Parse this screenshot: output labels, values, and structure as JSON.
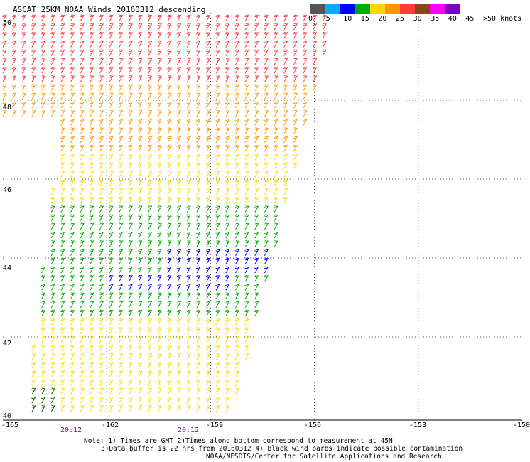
{
  "title": "ASCAT 25KM NOAA Winds 20160312 descending",
  "legend": {
    "colors": [
      "#555555",
      "#00aaff",
      "#0000ff",
      "#00aa00",
      "#ffd800",
      "#ff9900",
      "#ff3b3b",
      "#8b4513",
      "#ff00ff",
      "#8000c0"
    ],
    "labels": [
      "0",
      "5",
      "10",
      "15",
      "20",
      "25",
      "30",
      "35",
      "40",
      "45",
      ">50 knots"
    ]
  },
  "axes": {
    "lon_ticks": [
      "-165",
      "-162",
      "-159",
      "-156",
      "-153",
      "-150"
    ],
    "lat_ticks": [
      "50",
      "48",
      "46",
      "44",
      "42",
      "40"
    ]
  },
  "time_labels": [
    "20:12",
    "20:12"
  ],
  "notes": {
    "line1": "Note: 1) Times are GMT 2)Times along bottom correspond to measurement at 45N",
    "line2": "3)Data buffer is 22 hrs from 20160312 4) Black wind barbs indicate possible contamination",
    "line3": "NOAA/NESDIS/Center for Satellite Applications and Research"
  },
  "chart_data": {
    "type": "scatter",
    "title": "ASCAT 25KM NOAA Winds 20160312 descending",
    "lon_range": [
      -165,
      -150
    ],
    "lat_range": [
      40,
      50
    ],
    "grid": true,
    "wind_speed_bands_knots": [
      {
        "lat_range": [
          48,
          50
        ],
        "speed": 32,
        "color": "#ff3b3b"
      },
      {
        "lat_range": [
          46,
          48
        ],
        "speed": 27,
        "color": "#ff9900"
      },
      {
        "lat_range": [
          45,
          46
        ],
        "speed": 22,
        "color": "#ffd800"
      },
      {
        "lat_range": [
          43.5,
          45
        ],
        "speed": 17,
        "color": "#00aa00"
      },
      {
        "lat_range": [
          43,
          44
        ],
        "speed": 12,
        "color": "#0000ff"
      },
      {
        "lat_range": [
          42,
          43
        ],
        "speed": 18,
        "color": "#00aa00"
      },
      {
        "lat_range": [
          40,
          42
        ],
        "speed": 22,
        "color": "#ffd800"
      }
    ]
  }
}
